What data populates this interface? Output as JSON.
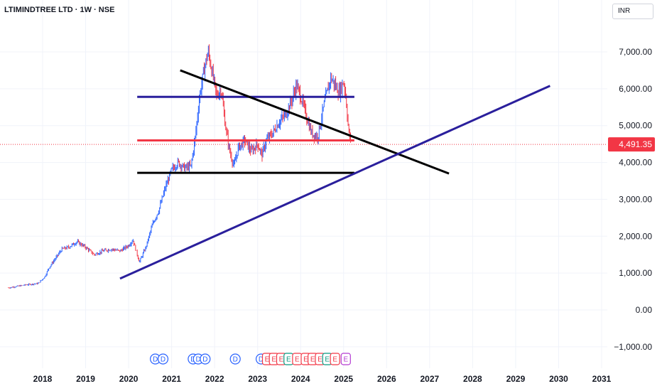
{
  "header": {
    "symbol_title": "LTIMINDTREE LTD · 1W · NSE",
    "currency": "INR"
  },
  "colors": {
    "up": "#2962ff",
    "down": "#f23645",
    "grid": "#f0f3fa",
    "purple_line": "#2a1f9c",
    "black_line": "#000000",
    "red_level": "#f23645",
    "dividend": "#2962ff",
    "earnings_red": "#f23645",
    "earnings_green": "#089981",
    "earnings_purple": "#b33ad1"
  },
  "chart_data": {
    "type": "candlestick",
    "title": "LTIMINDTREE LTD · 1W · NSE",
    "currency": "INR",
    "x_axis": {
      "ticks": [
        "2018",
        "2019",
        "2020",
        "2021",
        "2022",
        "2023",
        "2024",
        "2025",
        "2026",
        "2027",
        "2028",
        "2029",
        "2030",
        "2031"
      ],
      "range": [
        2017.2,
        2031.3
      ]
    },
    "y_axis": {
      "ticks": [
        -1000,
        0,
        1000,
        2000,
        3000,
        4000,
        5000,
        6000,
        7000
      ],
      "tick_labels": [
        "−1,000.00",
        "0.00",
        "1,000.00",
        "2,000.00",
        "3,000.00",
        "4,000.00",
        "5,000.00",
        "6,000.00",
        "7,000.00"
      ],
      "range": [
        -1300,
        8600
      ]
    },
    "last_price": 4491.35,
    "last_price_label": "4,491.35",
    "price_path": [
      [
        2017.2,
        600
      ],
      [
        2017.6,
        680
      ],
      [
        2017.9,
        720
      ],
      [
        2018.05,
        900
      ],
      [
        2018.15,
        1150
      ],
      [
        2018.3,
        1400
      ],
      [
        2018.45,
        1650
      ],
      [
        2018.6,
        1700
      ],
      [
        2018.8,
        1850
      ],
      [
        2019.0,
        1700
      ],
      [
        2019.2,
        1500
      ],
      [
        2019.4,
        1600
      ],
      [
        2019.6,
        1650
      ],
      [
        2019.8,
        1600
      ],
      [
        2020.0,
        1750
      ],
      [
        2020.1,
        1900
      ],
      [
        2020.2,
        1500
      ],
      [
        2020.25,
        1300
      ],
      [
        2020.4,
        1700
      ],
      [
        2020.55,
        2300
      ],
      [
        2020.7,
        2700
      ],
      [
        2020.85,
        3300
      ],
      [
        2021.0,
        3800
      ],
      [
        2021.15,
        4000
      ],
      [
        2021.3,
        3850
      ],
      [
        2021.45,
        3900
      ],
      [
        2021.55,
        4700
      ],
      [
        2021.65,
        5800
      ],
      [
        2021.75,
        6500
      ],
      [
        2021.85,
        7000
      ],
      [
        2021.95,
        6400
      ],
      [
        2022.05,
        5800
      ],
      [
        2022.15,
        6000
      ],
      [
        2022.25,
        5000
      ],
      [
        2022.35,
        4300
      ],
      [
        2022.45,
        3900
      ],
      [
        2022.55,
        4400
      ],
      [
        2022.7,
        4600
      ],
      [
        2022.85,
        4300
      ],
      [
        2023.0,
        4500
      ],
      [
        2023.1,
        4200
      ],
      [
        2023.2,
        4600
      ],
      [
        2023.35,
        4800
      ],
      [
        2023.5,
        5100
      ],
      [
        2023.65,
        5300
      ],
      [
        2023.8,
        5700
      ],
      [
        2023.9,
        6100
      ],
      [
        2024.0,
        5800
      ],
      [
        2024.1,
        5400
      ],
      [
        2024.25,
        4800
      ],
      [
        2024.4,
        4700
      ],
      [
        2024.55,
        5600
      ],
      [
        2024.7,
        6300
      ],
      [
        2024.8,
        6100
      ],
      [
        2024.9,
        5900
      ],
      [
        2025.0,
        6200
      ],
      [
        2025.05,
        5800
      ],
      [
        2025.12,
        4800
      ],
      [
        2025.18,
        4491
      ]
    ],
    "drawings": [
      {
        "name": "purple-upper-resistance",
        "color": "#2a1f9c",
        "from": [
          2020.2,
          5780
        ],
        "to": [
          2025.25,
          5780
        ]
      },
      {
        "name": "red-mid-level",
        "color": "#f23645",
        "from": [
          2020.2,
          4600
        ],
        "to": [
          2025.25,
          4600
        ]
      },
      {
        "name": "black-lower-support",
        "color": "#000000",
        "from": [
          2020.2,
          3720
        ],
        "to": [
          2025.25,
          3720
        ]
      },
      {
        "name": "black-descending-trendline",
        "color": "#000000",
        "from": [
          2021.2,
          6500
        ],
        "to": [
          2027.45,
          3700
        ]
      },
      {
        "name": "purple-ascending-trendline",
        "color": "#2a1f9c",
        "from": [
          2019.8,
          850
        ],
        "to": [
          2029.8,
          6080
        ]
      }
    ],
    "events": [
      {
        "date": 2020.62,
        "kind": "dividend",
        "label": "D"
      },
      {
        "date": 2020.8,
        "kind": "dividend",
        "label": "D"
      },
      {
        "date": 2021.5,
        "kind": "dividend",
        "label": "D"
      },
      {
        "date": 2021.62,
        "kind": "dividend",
        "label": "D"
      },
      {
        "date": 2021.78,
        "kind": "dividend",
        "label": "D"
      },
      {
        "date": 2022.48,
        "kind": "dividend",
        "label": "D"
      },
      {
        "date": 2023.08,
        "kind": "dividend",
        "label": "D"
      },
      {
        "date": 2023.22,
        "kind": "earnings-red",
        "label": "E"
      },
      {
        "date": 2023.38,
        "kind": "earnings-red",
        "label": "E"
      },
      {
        "date": 2023.55,
        "kind": "earnings-red",
        "label": "E"
      },
      {
        "date": 2023.72,
        "kind": "earnings-green",
        "label": "E"
      },
      {
        "date": 2023.92,
        "kind": "earnings-red",
        "label": "E"
      },
      {
        "date": 2024.12,
        "kind": "earnings-red",
        "label": "E"
      },
      {
        "date": 2024.28,
        "kind": "earnings-red",
        "label": "E"
      },
      {
        "date": 2024.45,
        "kind": "earnings-red",
        "label": "E"
      },
      {
        "date": 2024.62,
        "kind": "earnings-green",
        "label": "E"
      },
      {
        "date": 2024.8,
        "kind": "earnings-red",
        "label": "E"
      },
      {
        "date": 2025.05,
        "kind": "earnings-purple",
        "label": "E"
      }
    ]
  }
}
